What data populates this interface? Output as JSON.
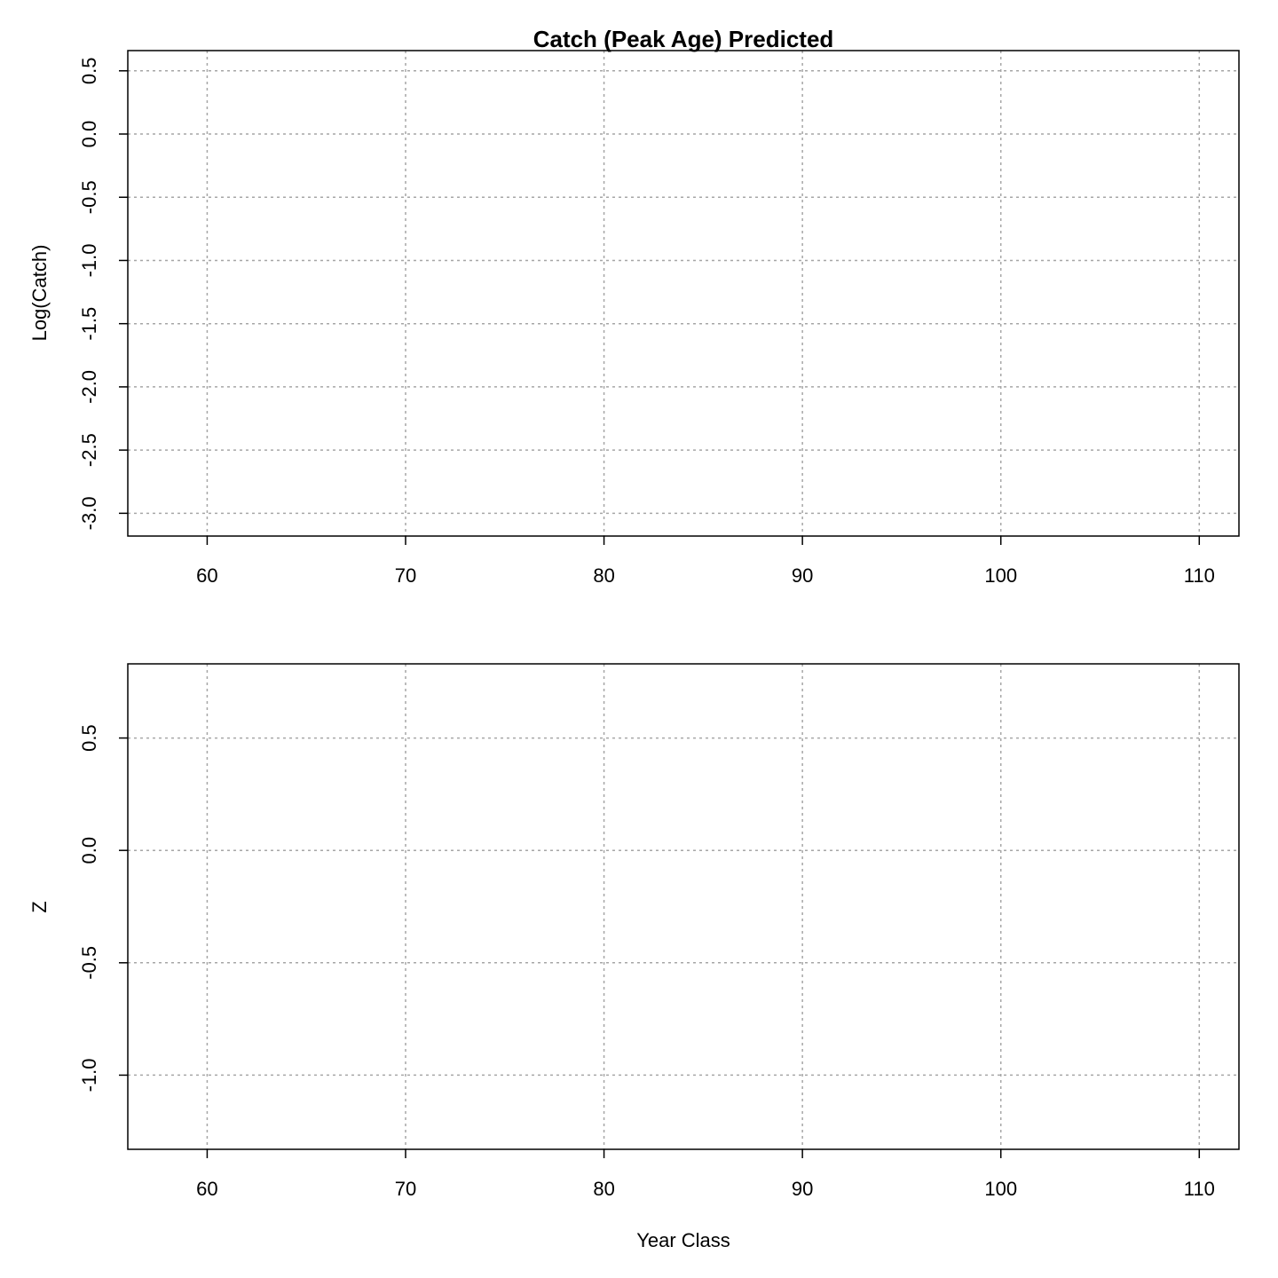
{
  "chart_data": [
    {
      "type": "line",
      "title": "Catch (Peak Age) Predicted",
      "xlabel": "",
      "ylabel": "Log(Catch)",
      "xlim": [
        56,
        112
      ],
      "ylim": [
        -3.18,
        0.66
      ],
      "x_ticks": [
        60,
        70,
        80,
        90,
        100,
        110
      ],
      "y_ticks": [
        -3.0,
        -2.5,
        -2.0,
        -1.5,
        -1.0,
        -0.5,
        0.0,
        0.5
      ],
      "y_tick_labels": [
        "-3.0",
        "-2.5",
        "-2.0",
        "-1.5",
        "-1.0",
        "-0.5",
        "0.0",
        "0.5"
      ],
      "grid": true,
      "series": []
    },
    {
      "type": "line",
      "title": "",
      "xlabel": "Year Class",
      "ylabel": "Z",
      "xlim": [
        56,
        112
      ],
      "ylim": [
        -1.33,
        0.83
      ],
      "x_ticks": [
        60,
        70,
        80,
        90,
        100,
        110
      ],
      "y_ticks": [
        -1.0,
        -0.5,
        0.0,
        0.5
      ],
      "y_tick_labels": [
        "-1.0",
        "-0.5",
        "0.0",
        "0.5"
      ],
      "grid": true,
      "series": []
    }
  ]
}
